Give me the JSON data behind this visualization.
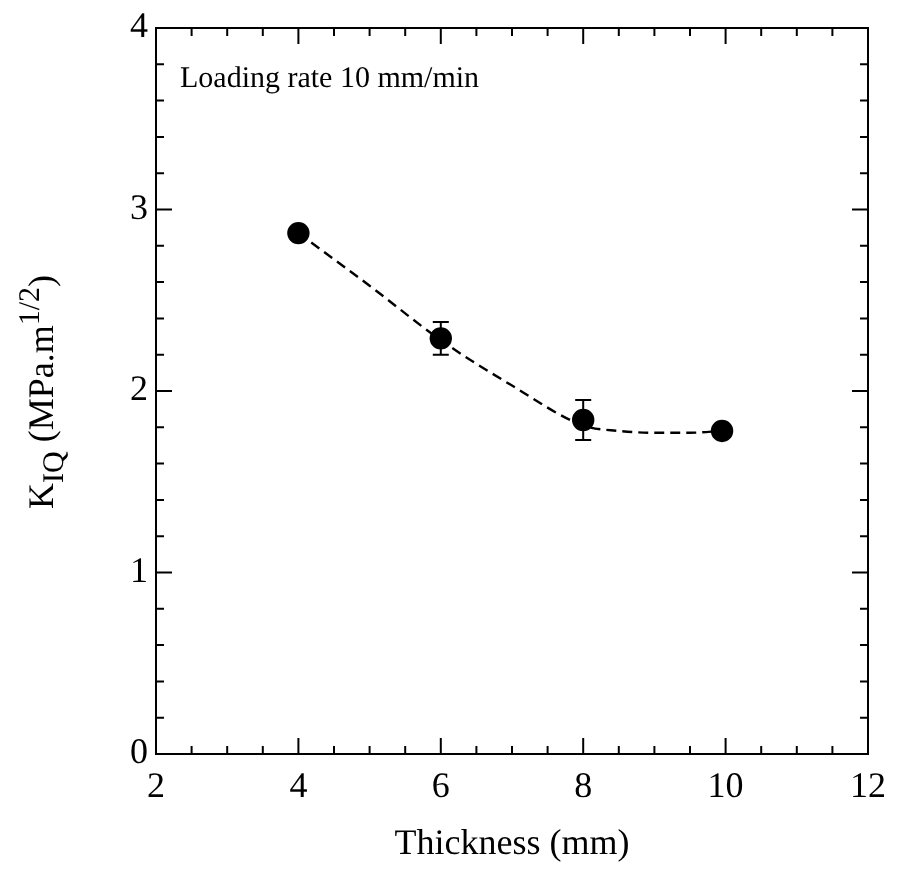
{
  "chart_data": {
    "type": "scatter",
    "xlabel": "Thickness (mm)",
    "ylabel": "K$_{IQ}$ (MPa.m$^{1/2}$)",
    "annotations": [
      "Loading rate 10 mm/min"
    ],
    "xlim": [
      2,
      12
    ],
    "ylim": [
      0,
      4
    ],
    "xticks": [
      2,
      {
        "value": 2.5,
        "label": null
      },
      {
        "value": 3,
        "label": null
      },
      {
        "value": 3.5,
        "label": null
      },
      4,
      {
        "value": 4.5,
        "label": null
      },
      {
        "value": 5,
        "label": null
      },
      {
        "value": 5.5,
        "label": null
      },
      6,
      {
        "value": 6.5,
        "label": null
      },
      {
        "value": 7,
        "label": null
      },
      {
        "value": 7.5,
        "label": null
      },
      8,
      {
        "value": 8.5,
        "label": null
      },
      {
        "value": 9,
        "label": null
      },
      {
        "value": 9.5,
        "label": null
      },
      10,
      {
        "value": 10.5,
        "label": null
      },
      {
        "value": 11,
        "label": null
      },
      {
        "value": 11.5,
        "label": null
      },
      12
    ],
    "yticks": [
      0,
      {
        "value": 0.2,
        "label": null
      },
      {
        "value": 0.4,
        "label": null
      },
      {
        "value": 0.6,
        "label": null
      },
      {
        "value": 0.8,
        "label": null
      },
      1,
      {
        "value": 1.2,
        "label": null
      },
      {
        "value": 1.4,
        "label": null
      },
      {
        "value": 1.6,
        "label": null
      },
      {
        "value": 1.8,
        "label": null
      },
      2,
      {
        "value": 2.2,
        "label": null
      },
      {
        "value": 2.4,
        "label": null
      },
      {
        "value": 2.6,
        "label": null
      },
      {
        "value": 2.8,
        "label": null
      },
      3,
      {
        "value": 3.2,
        "label": null
      },
      {
        "value": 3.4,
        "label": null
      },
      {
        "value": 3.6,
        "label": null
      },
      {
        "value": 3.8,
        "label": null
      },
      4
    ],
    "grid": false,
    "legend": false,
    "series": [
      {
        "type": "line",
        "color": "#000000",
        "marker": "none",
        "line_style": "dashed",
        "x": [
          4,
          5,
          6,
          7,
          8,
          8.5,
          9,
          9.5,
          9.95
        ],
        "values": [
          2.87,
          2.58,
          2.28,
          2.03,
          1.81,
          1.78,
          1.77,
          1.77,
          1.78
        ]
      },
      {
        "type": "scatter",
        "color": "#000000",
        "marker": "circle",
        "x": [
          4,
          6,
          8,
          9.95
        ],
        "values": [
          2.87,
          2.29,
          1.84,
          1.78
        ],
        "errors": [
          null,
          0.09,
          0.11,
          0.02
        ]
      }
    ]
  }
}
